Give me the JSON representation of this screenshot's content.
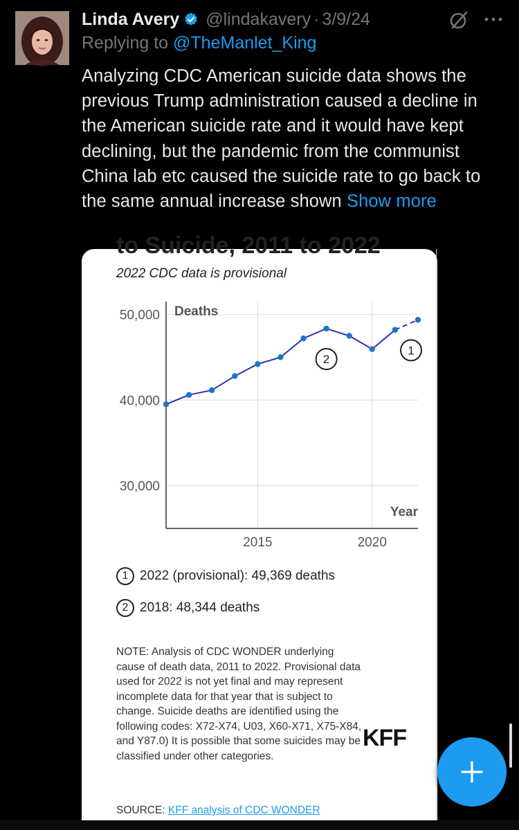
{
  "tweet": {
    "display_name": "Linda Avery",
    "handle": "@lindakavery",
    "separator": "·",
    "date": "3/9/24",
    "replying_prefix": "Replying to ",
    "replying_to": "@TheManlet_King",
    "body": "Analyzing CDC American suicide data shows the previous Trump administration caused a decline in the American suicide rate and it would have kept declining, but the pandemic from the communist China lab etc caused the suicide rate to go back to the same annual increase shown ",
    "show_more": "Show more"
  },
  "icons": {
    "verified": "verified-badge-icon",
    "grok": "grok-icon",
    "more": "more-options-icon",
    "compose": "plus-icon"
  },
  "colors": {
    "background": "#000000",
    "text": "#e7e9ea",
    "muted": "#71767b",
    "accent": "#1d9bf0",
    "line": "#2a33b5",
    "point": "#1f73c9"
  },
  "card": {
    "title_fragment": "to Suicide, 2011 to 2022",
    "subtitle": "2022 CDC data is provisional",
    "annotations": [
      {
        "marker": "1",
        "text": "2022 (provisional): 49,369 deaths"
      },
      {
        "marker": "2",
        "text": "2018: 48,344 deaths"
      }
    ],
    "note": "NOTE: Analysis of CDC WONDER underlying cause of death data, 2011 to 2022. Provisional data used for 2022 is not yet final and may represent incomplete data for that year that is subject to change. Suicide deaths are identified using the following codes: X72-X74, U03, X60-X71, X75-X84, and Y87.0) It is possible that some suicides may be classified under other categories.",
    "source_prefix": "SOURCE: ",
    "source_link": "KFF analysis of CDC WONDER",
    "logo_text": "KFF"
  },
  "chart_data": {
    "type": "line",
    "title": "2022 CDC data is provisional",
    "ylabel": "Deaths",
    "xlabel": "Year",
    "x": [
      2011,
      2012,
      2013,
      2014,
      2015,
      2016,
      2017,
      2018,
      2019,
      2020,
      2021,
      2022
    ],
    "y": [
      39500,
      40600,
      41150,
      42800,
      44200,
      45000,
      47200,
      48344,
      47500,
      45950,
      48200,
      49369
    ],
    "provisional_from_index": 10,
    "ylim": [
      25000,
      51500
    ],
    "yticks": [
      30000,
      40000,
      50000
    ],
    "ytick_labels": [
      "30,000",
      "40,000",
      "50,000"
    ],
    "xticks": [
      2015,
      2020
    ],
    "xtick_labels": [
      "2015",
      "2020"
    ],
    "markers": [
      {
        "label": "1",
        "x": 2022
      },
      {
        "label": "2",
        "x": 2018
      }
    ],
    "grid": true
  }
}
